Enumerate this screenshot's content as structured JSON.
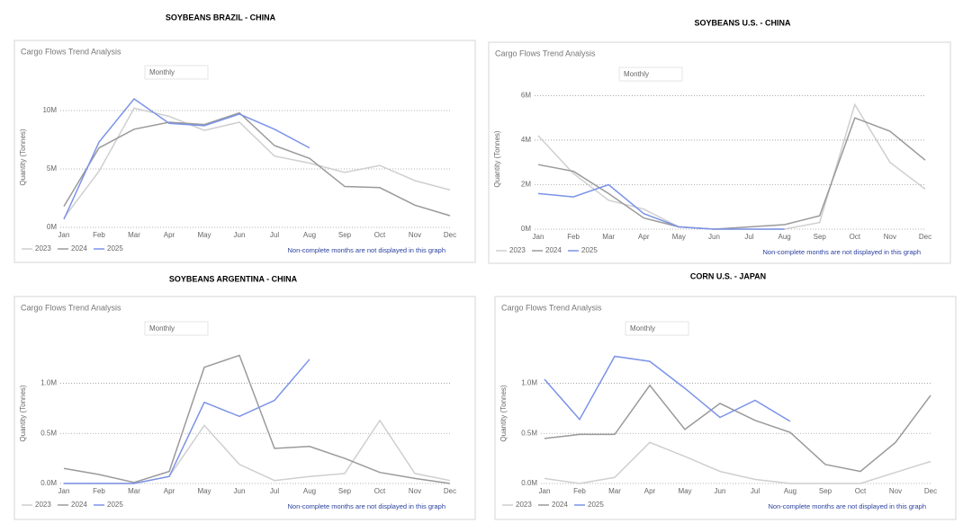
{
  "chart_data": [
    {
      "type": "line",
      "heading": "SOYBEANS BRAZIL - CHINA",
      "title": "Cargo Flows Trend Analysis",
      "dropdown": "Monthly",
      "ylabel": "Quantity (Tonnes)",
      "note": "Non-complete months are not displayed in this graph",
      "categories": [
        "Jan",
        "Feb",
        "Mar",
        "Apr",
        "May",
        "Jun",
        "Jul",
        "Aug",
        "Sep",
        "Oct",
        "Nov",
        "Dec"
      ],
      "ylim": [
        0,
        12000000
      ],
      "yticks": [
        {
          "value": 0,
          "label": "0M"
        },
        {
          "value": 5000000,
          "label": "5M"
        },
        {
          "value": 10000000,
          "label": "10M"
        }
      ],
      "grid": true,
      "series": [
        {
          "name": "2023",
          "color": "#cfcfcf",
          "values": [
            800000,
            4800000,
            10200000,
            9500000,
            8300000,
            9000000,
            6100000,
            5500000,
            4700000,
            5300000,
            4000000,
            3200000
          ]
        },
        {
          "name": "2024",
          "color": "#9a9a9a",
          "values": [
            1800000,
            6800000,
            8400000,
            9000000,
            8800000,
            9800000,
            7000000,
            5900000,
            3500000,
            3400000,
            1900000,
            1000000
          ]
        },
        {
          "name": "2025",
          "color": "#7b93e8",
          "values": [
            700000,
            7300000,
            11000000,
            8900000,
            8700000,
            9700000,
            8400000,
            6800000,
            null,
            null,
            null,
            null
          ]
        }
      ]
    },
    {
      "type": "line",
      "heading": "SOYBEANS U.S. - CHINA",
      "title": "Cargo Flows Trend Analysis",
      "dropdown": "Monthly",
      "ylabel": "Quantity (Tonnes)",
      "note": "Non-complete months are not displayed in this graph",
      "categories": [
        "Jan",
        "Feb",
        "Mar",
        "Apr",
        "May",
        "Jun",
        "Jul",
        "Aug",
        "Sep",
        "Oct",
        "Nov",
        "Dec"
      ],
      "ylim": [
        0,
        6300000
      ],
      "yticks": [
        {
          "value": 0,
          "label": "0M"
        },
        {
          "value": 2000000,
          "label": "2M"
        },
        {
          "value": 4000000,
          "label": "4M"
        },
        {
          "value": 6000000,
          "label": "6M"
        }
      ],
      "grid": true,
      "series": [
        {
          "name": "2023",
          "color": "#cfcfcf",
          "values": [
            4200000,
            2500000,
            1300000,
            900000,
            100000,
            0,
            0,
            0,
            300000,
            5600000,
            3000000,
            1800000
          ]
        },
        {
          "name": "2024",
          "color": "#9a9a9a",
          "values": [
            2900000,
            2600000,
            1600000,
            500000,
            100000,
            0,
            100000,
            200000,
            600000,
            5000000,
            4400000,
            3100000
          ]
        },
        {
          "name": "2025",
          "color": "#7b93e8",
          "values": [
            1600000,
            1450000,
            2000000,
            700000,
            100000,
            0,
            0,
            0,
            null,
            null,
            null,
            null
          ]
        }
      ]
    },
    {
      "type": "line",
      "heading": "SOYBEANS ARGENTINA - CHINA",
      "title": "Cargo Flows Trend Analysis",
      "dropdown": "Monthly",
      "ylabel": "Quantity (Tonnes)",
      "note": "Non-complete months are not displayed in this graph",
      "categories": [
        "Jan",
        "Feb",
        "Mar",
        "Apr",
        "May",
        "Jun",
        "Jul",
        "Aug",
        "Sep",
        "Oct",
        "Nov",
        "Dec"
      ],
      "ylim": [
        0,
        1400000
      ],
      "yticks": [
        {
          "value": 0,
          "label": "0.0M"
        },
        {
          "value": 500000,
          "label": "0.5M"
        },
        {
          "value": 1000000,
          "label": "1.0M"
        }
      ],
      "grid": true,
      "series": [
        {
          "name": "2023",
          "color": "#cfcfcf",
          "values": [
            0,
            0,
            0,
            70000,
            580000,
            190000,
            30000,
            70000,
            100000,
            630000,
            100000,
            30000
          ]
        },
        {
          "name": "2024",
          "color": "#9a9a9a",
          "values": [
            150000,
            90000,
            10000,
            120000,
            1160000,
            1280000,
            350000,
            370000,
            250000,
            110000,
            50000,
            0
          ]
        },
        {
          "name": "2025",
          "color": "#7b93e8",
          "values": [
            0,
            0,
            0,
            70000,
            810000,
            670000,
            830000,
            1240000,
            null,
            null,
            null,
            null
          ]
        }
      ]
    },
    {
      "type": "line",
      "heading": "CORN U.S. - JAPAN",
      "title": "Cargo Flows Trend Analysis",
      "dropdown": "Monthly",
      "ylabel": "Quantity (Tonnes)",
      "note": "Non-complete months are not displayed in this graph",
      "categories": [
        "Jan",
        "Feb",
        "Mar",
        "Apr",
        "May",
        "Jun",
        "Jul",
        "Aug",
        "Sep",
        "Oct",
        "Nov",
        "Dec"
      ],
      "ylim": [
        0,
        1400000
      ],
      "yticks": [
        {
          "value": 0,
          "label": "0.0M"
        },
        {
          "value": 500000,
          "label": "0.5M"
        },
        {
          "value": 1000000,
          "label": "1.0M"
        }
      ],
      "grid": true,
      "series": [
        {
          "name": "2023",
          "color": "#cfcfcf",
          "values": [
            50000,
            0,
            60000,
            410000,
            270000,
            120000,
            40000,
            0,
            0,
            0,
            110000,
            220000
          ]
        },
        {
          "name": "2024",
          "color": "#9a9a9a",
          "values": [
            450000,
            490000,
            490000,
            980000,
            540000,
            800000,
            630000,
            510000,
            190000,
            120000,
            410000,
            880000
          ]
        },
        {
          "name": "2025",
          "color": "#7b93e8",
          "values": [
            1040000,
            640000,
            1270000,
            1220000,
            950000,
            660000,
            830000,
            620000,
            null,
            null,
            null,
            null
          ]
        }
      ]
    }
  ]
}
